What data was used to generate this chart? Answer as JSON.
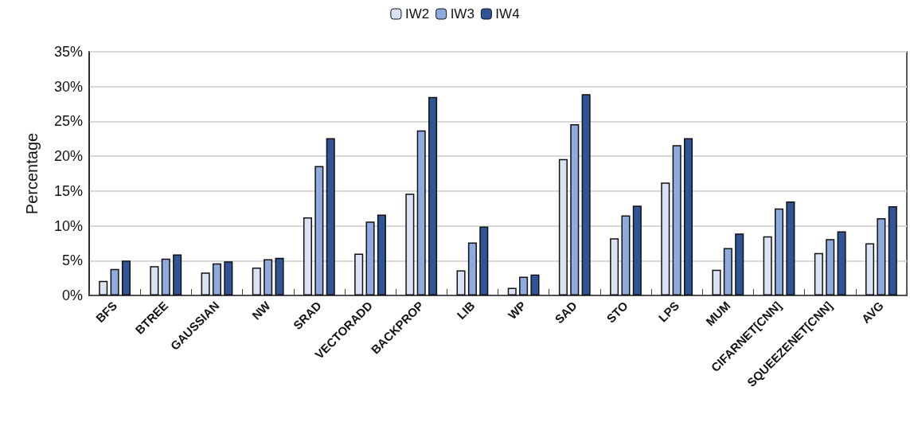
{
  "chart_data": {
    "type": "bar",
    "ylabel": "Percentage",
    "categories": [
      "BFS",
      "BTREE",
      "GAUSSIAN",
      "NW",
      "SRAD",
      "VECTORADD",
      "BACKPROP",
      "LIB",
      "WP",
      "SAD",
      "STO",
      "LPS",
      "MUM",
      "CIFARNET[CNN]",
      "SQUEEZENET[CNN]",
      "AVG"
    ],
    "series": [
      {
        "name": "IW2",
        "color": "#dae3f3",
        "values": [
          2.1,
          4.2,
          3.3,
          4.0,
          11.2,
          6.0,
          14.6,
          3.6,
          1.1,
          19.6,
          8.2,
          16.2,
          3.7,
          8.5,
          6.1,
          7.5
        ]
      },
      {
        "name": "IW3",
        "color": "#8faadc",
        "values": [
          3.8,
          5.3,
          4.6,
          5.2,
          18.6,
          10.6,
          23.7,
          7.6,
          2.7,
          24.6,
          11.5,
          21.6,
          6.8,
          12.5,
          8.1,
          11.1
        ]
      },
      {
        "name": "IW4",
        "color": "#2f5597",
        "values": [
          5.0,
          5.9,
          4.9,
          5.4,
          22.6,
          11.6,
          28.5,
          9.9,
          3.0,
          28.9,
          12.9,
          22.6,
          8.9,
          13.5,
          9.2,
          12.8
        ]
      }
    ],
    "ylim": [
      0,
      35
    ],
    "yticks": [
      {
        "value": 0,
        "label": "0%"
      },
      {
        "value": 5,
        "label": "5%"
      },
      {
        "value": 10,
        "label": "10%"
      },
      {
        "value": 15,
        "label": "15%"
      },
      {
        "value": 20,
        "label": "20%"
      },
      {
        "value": 25,
        "label": "25%"
      },
      {
        "value": 30,
        "label": "30%"
      },
      {
        "value": 35,
        "label": "35%"
      }
    ],
    "grid": "y",
    "legend": "top"
  }
}
